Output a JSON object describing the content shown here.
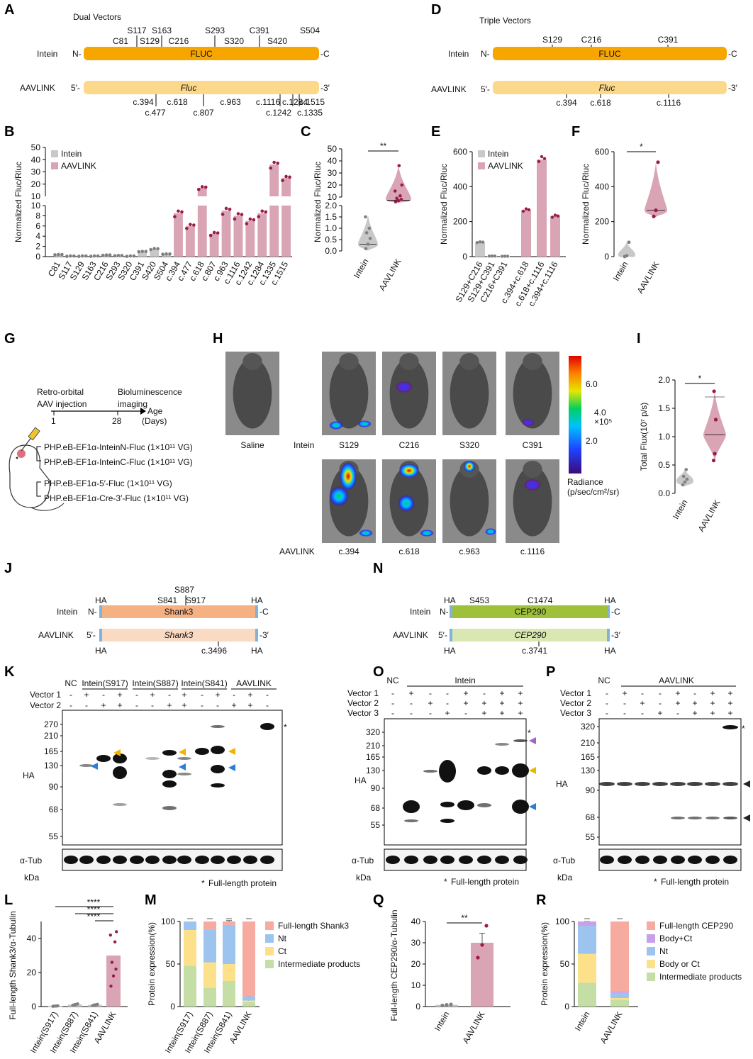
{
  "panels": {
    "A": "A",
    "B": "B",
    "C": "C",
    "D": "D",
    "E": "E",
    "F": "F",
    "G": "G",
    "H": "H",
    "I": "I",
    "J": "J",
    "K": "K",
    "L": "L",
    "M": "M",
    "N": "N",
    "O": "O",
    "P": "P",
    "Q": "Q",
    "R": "R"
  },
  "colors": {
    "fluc_dark": "#f7a600",
    "fluc_light": "#fcd88a",
    "shank_dark": "#f6b183",
    "shank_light": "#fbdac3",
    "cep_dark": "#9fc13a",
    "cep_light": "#d9e7b0",
    "intein": "#c8c8c8",
    "aavlink": "#d9a5b5",
    "dot": "#9b1b48",
    "grey_dot": "#808080"
  },
  "panelA": {
    "title": "Dual Vectors",
    "row1_label": "Intein",
    "row1_n": "N-",
    "row1_bar": "FLUC",
    "row1_c": "-C",
    "row2_label": "AAVLINK",
    "row2_5": "5′-",
    "row2_bar": "Fluc",
    "row2_3": "-3′",
    "sites_top": [
      "S117",
      "S163",
      "S293",
      "C391",
      "S504"
    ],
    "sites_mid": [
      "C81",
      "S129",
      "C216",
      "S320",
      "S420"
    ],
    "sites_bottom_a": [
      "c.394",
      "c.618",
      "c.963",
      "c.1116",
      "c.1284",
      "c.1515"
    ],
    "sites_bottom_b": [
      "c.477",
      "c.807",
      "c.1242",
      "c.1335"
    ]
  },
  "panelD": {
    "title": "Triple Vectors",
    "row1_label": "Intein",
    "row1_n": "N-",
    "row1_bar": "FLUC",
    "row1_c": "-C",
    "row2_label": "AAVLINK",
    "row2_5": "5′-",
    "row2_bar": "Fluc",
    "row2_3": "-3′",
    "sites_top": [
      "S129",
      "C216",
      "C391"
    ],
    "sites_bottom": [
      "c.394",
      "c.618",
      "c.1116"
    ]
  },
  "chart_data": [
    {
      "panel": "B",
      "type": "bar",
      "ylabel": "Normalized Fluc/Rluc",
      "broken_axis": true,
      "legend": [
        "Intein",
        "AAVLINK"
      ],
      "categories": [
        "C81",
        "S117",
        "S129",
        "S163",
        "C216",
        "S293",
        "S320",
        "C391",
        "S420",
        "S504",
        "c.394",
        "c.477",
        "c.618",
        "c.807",
        "c.963",
        "c.1116",
        "c.1242",
        "c.1284",
        "c.1335",
        "c.1515"
      ],
      "group": [
        "Intein",
        "Intein",
        "Intein",
        "Intein",
        "Intein",
        "Intein",
        "Intein",
        "Intein",
        "Intein",
        "Intein",
        "AAVLINK",
        "AAVLINK",
        "AAVLINK",
        "AAVLINK",
        "AAVLINK",
        "AAVLINK",
        "AAVLINK",
        "AAVLINK",
        "AAVLINK",
        "AAVLINK"
      ],
      "values": [
        0.4,
        0.1,
        0.1,
        0.1,
        0.3,
        0.2,
        0.1,
        1.0,
        1.5,
        0.5,
        8.5,
        6.0,
        17,
        4.5,
        9.0,
        8.0,
        7.0,
        8.5,
        36,
        25
      ],
      "ytick_labels": [
        "0",
        "2",
        "4",
        "6",
        "8",
        "10",
        "20",
        "30",
        "40",
        "50"
      ]
    },
    {
      "panel": "C",
      "type": "violin",
      "ylabel": "Normalized Fluc/Rluc",
      "categories": [
        "Intein",
        "AAVLINK"
      ],
      "median": [
        0.3,
        8.5
      ],
      "ytick_labels": [
        "0.0",
        "0.5",
        "1.0",
        "1.5",
        "2.0",
        "10",
        "20",
        "30",
        "40",
        "50"
      ],
      "significance": "**"
    },
    {
      "panel": "E",
      "type": "bar",
      "ylabel": "Normalized Fluc/Rluc",
      "legend": [
        "Intein",
        "AAVLINK"
      ],
      "categories": [
        "S129+C216",
        "S129+C391",
        "C216+C391",
        "c.394+c.618",
        "c.618+c.1116",
        "c.394+c.1116"
      ],
      "group": [
        "Intein",
        "Intein",
        "Intein",
        "AAVLINK",
        "AAVLINK",
        "AAVLINK"
      ],
      "values": [
        82,
        3,
        2,
        265,
        555,
        230
      ],
      "ylim": [
        0,
        600
      ],
      "ytick_labels": [
        "0",
        "200",
        "400",
        "600"
      ]
    },
    {
      "panel": "F",
      "type": "violin",
      "ylabel": "Normalized Fluc/Rluc",
      "categories": [
        "Intein",
        "AAVLINK"
      ],
      "median": [
        5,
        265
      ],
      "ylim": [
        0,
        600
      ],
      "ytick_labels": [
        "0",
        "200",
        "400",
        "600"
      ],
      "significance": "*"
    },
    {
      "panel": "I",
      "type": "violin",
      "ylabel": "Total Flux(10⁷ p/s)",
      "categories": [
        "Intein",
        "AAVLINK"
      ],
      "median": [
        0.22,
        1.03
      ],
      "ylim": [
        0,
        2.0
      ],
      "ytick_labels": [
        "0.0",
        "0.5",
        "1.0",
        "1.5",
        "2.0"
      ],
      "significance": "*"
    },
    {
      "panel": "L",
      "type": "bar",
      "ylabel": "Full-length Shank3/α-Tubulin",
      "categories": [
        "Intein(S917)",
        "Intein(S887)",
        "Intein(S841)",
        "AAVLINK"
      ],
      "values": [
        0.3,
        1.2,
        1.0,
        30
      ],
      "ylim": [
        0,
        50
      ],
      "ytick_labels": [
        "0",
        "20",
        "40"
      ],
      "significance": [
        "****",
        "****",
        "****"
      ]
    },
    {
      "panel": "M",
      "type": "stacked bar",
      "ylabel": "Protein expression(%)",
      "categories": [
        "Intein(S917)",
        "Intein(S887)",
        "Intein(S841)",
        "AAVLINK"
      ],
      "series": [
        {
          "name": "Intermediate products",
          "values": [
            48,
            22,
            30,
            5
          ]
        },
        {
          "name": "Ct",
          "values": [
            42,
            30,
            20,
            2
          ]
        },
        {
          "name": "Nt",
          "values": [
            10,
            38,
            46,
            5
          ]
        },
        {
          "name": "Full-length Shank3",
          "values": [
            0,
            10,
            4,
            88
          ]
        }
      ],
      "ylim": [
        0,
        100
      ],
      "ytick_labels": [
        "0",
        "50",
        "100"
      ]
    },
    {
      "panel": "Q",
      "type": "bar",
      "ylabel": "Full-length CEP290/α-Tubulin",
      "categories": [
        "Intein",
        "AAVLINK"
      ],
      "values": [
        0.8,
        30
      ],
      "ylim": [
        0,
        40
      ],
      "ytick_labels": [
        "0",
        "10",
        "20",
        "30",
        "40"
      ],
      "significance": "**"
    },
    {
      "panel": "R",
      "type": "stacked bar",
      "ylabel": "Protein expression(%)",
      "categories": [
        "Intein",
        "AAVLINK"
      ],
      "series": [
        {
          "name": "Intermediate products",
          "values": [
            28,
            8
          ]
        },
        {
          "name": "Body or Ct",
          "values": [
            34,
            2
          ]
        },
        {
          "name": "Nt",
          "values": [
            33,
            6
          ]
        },
        {
          "name": "Body+Ct",
          "values": [
            5,
            2
          ]
        },
        {
          "name": "Full-length CEP290",
          "values": [
            0,
            82
          ]
        }
      ],
      "ylim": [
        0,
        100
      ],
      "ytick_labels": [
        "0",
        "50",
        "100"
      ]
    }
  ],
  "panelG": {
    "step1": "Retro-orbital",
    "step1b": "AAV injection",
    "step2": "Bioluminescence",
    "step2b": "imaging",
    "day1": "1",
    "day2": "28",
    "age": "Age",
    "days": "(Days)",
    "construct1": "PHP.eB-EF1α-InteinN-Fluc (1×10¹¹ VG)",
    "construct2": "PHP.eB-EF1α-InteinC-Fluc (1×10¹¹ VG)",
    "construct3": "PHP.eB-EF1α-5′-Fluc (1×10¹¹ VG)",
    "construct4": "PHP.eB-EF1α-Cre-3′-Fluc (1×10¹¹ VG)"
  },
  "panelH": {
    "saline": "Saline",
    "intein": "Intein",
    "aavlink": "AAVLINK",
    "top": [
      "S129",
      "C216",
      "S320",
      "C391"
    ],
    "bottom": [
      "c.394",
      "c.618",
      "c.963",
      "c.1116"
    ],
    "scale_ticks": [
      "6.0",
      "4.0",
      "2.0"
    ],
    "scale_exp": "×10⁵",
    "scale_label1": "Radiance",
    "scale_label2": "(p/sec/cm²/sr)"
  },
  "panelJ": {
    "ha": "HA",
    "top_sites1": "S887",
    "top_sites2": "S841",
    "top_sites3": "S917",
    "row1_label": "Intein",
    "row1_n": "N-",
    "row1_bar": "Shank3",
    "row1_c": "-C",
    "row2_label": "AAVLINK",
    "row2_5": "5′-",
    "row2_bar": "Shank3",
    "row2_3": "-3′",
    "bottom_site": "c.3496"
  },
  "panelN": {
    "ha": "HA",
    "top_sites1": "S453",
    "top_sites2": "C1474",
    "row1_label": "Intein",
    "row1_n": "N-",
    "row1_bar": "CEP290",
    "row1_c": "-C",
    "row2_label": "AAVLINK",
    "row2_5": "5′-",
    "row2_bar": "CEP290",
    "row2_3": "-3′",
    "bottom_site": "c.3741"
  },
  "blotK": {
    "nc": "NC",
    "groups": [
      "Intein(S917)",
      "Intein(S887)",
      "Intein(S841)",
      "AAVLINK"
    ],
    "v1": "Vector 1",
    "v2": "Vector 2",
    "markers": [
      "270",
      "210",
      "165",
      "130",
      "90",
      "68",
      "55"
    ],
    "ha": "HA",
    "tub": "α-Tub",
    "kda": "kDa",
    "note": "Full-length protein"
  },
  "blotO": {
    "nc": "NC",
    "group": "Intein",
    "v1": "Vector 1",
    "v2": "Vector 2",
    "v3": "Vector 3",
    "markers": [
      "320",
      "210",
      "165",
      "130",
      "90",
      "68",
      "55"
    ],
    "ha": "HA",
    "tub": "α-Tub",
    "kda": "kDa",
    "note": "Full-length protein"
  },
  "blotP": {
    "nc": "NC",
    "group": "AAVLINK",
    "v1": "Vector 1",
    "v2": "Vector 2",
    "v3": "Vector 3",
    "markers": [
      "320",
      "210",
      "165",
      "130",
      "90",
      "68",
      "55"
    ],
    "ha": "HA",
    "tub": "α-Tub",
    "kda": "kDa",
    "note": "Full-length protein"
  },
  "signs": {
    "minus": "-",
    "plus": "+",
    "star": "*"
  }
}
